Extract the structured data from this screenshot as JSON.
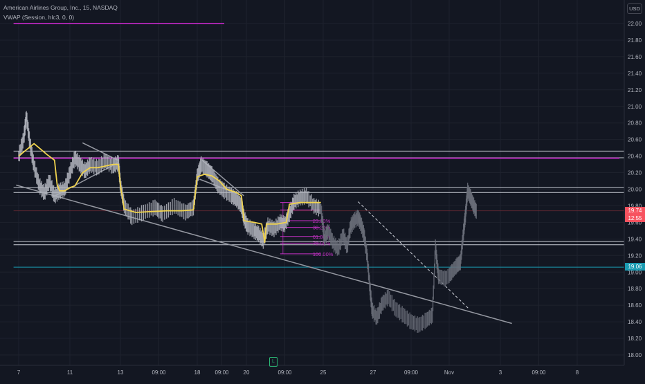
{
  "header": {
    "symbol_line": "American Airlines Group, Inc., 15, NASDAQ",
    "indicator_line": "VWAP (Session, hlc3, 0, 0)"
  },
  "currency": "USD",
  "colors": {
    "background": "#131722",
    "grid": "#1e222d",
    "price_candles": "#b2b5be",
    "projection": "#6b6f7a",
    "vwap": "#f0d34e",
    "magenta_levels": "#d52ad8",
    "white_levels": "#e0e3eb",
    "fib": "#c832c8",
    "trendline": "#9598a1",
    "cyan_level": "#1a9bb2",
    "last_price_tag": "#f7525f",
    "cyan_tag": "#1a9bb2"
  },
  "chart_data": {
    "type": "line",
    "ylim": [
      17.9,
      22.1
    ],
    "y_ticks": [
      "22.00",
      "21.80",
      "21.60",
      "21.40",
      "21.20",
      "21.00",
      "20.80",
      "20.60",
      "20.40",
      "20.20",
      "20.00",
      "19.80",
      "19.60",
      "19.40",
      "19.20",
      "19.00",
      "18.80",
      "18.60",
      "18.40",
      "18.20",
      "18.00"
    ],
    "x_ticks": [
      "7",
      "11",
      "13",
      "09:00",
      "18",
      "09:00",
      "20",
      "09:00",
      "25",
      "27",
      "09:00",
      "Nov",
      "3",
      "09:00",
      "8"
    ],
    "x_tick_pos": [
      0,
      1,
      2,
      2.5,
      3,
      3.5,
      4,
      4.5,
      5,
      6,
      6.5,
      7,
      8,
      8.5,
      9
    ],
    "price_path": [
      [
        0.0,
        20.4
      ],
      [
        0.1,
        20.62
      ],
      [
        0.15,
        20.88
      ],
      [
        0.22,
        20.55
      ],
      [
        0.3,
        20.28
      ],
      [
        0.4,
        20.05
      ],
      [
        0.5,
        19.95
      ],
      [
        0.6,
        20.1
      ],
      [
        0.7,
        19.92
      ],
      [
        0.8,
        19.98
      ],
      [
        0.9,
        20.0
      ],
      [
        1.0,
        20.2
      ],
      [
        1.1,
        20.38
      ],
      [
        1.2,
        20.3
      ],
      [
        1.3,
        20.22
      ],
      [
        1.4,
        20.3
      ],
      [
        1.55,
        20.26
      ],
      [
        1.7,
        20.34
      ],
      [
        1.85,
        20.28
      ],
      [
        1.96,
        20.32
      ],
      [
        2.0,
        20.05
      ],
      [
        2.05,
        19.8
      ],
      [
        2.15,
        19.66
      ],
      [
        2.3,
        19.72
      ],
      [
        2.45,
        19.78
      ],
      [
        2.55,
        19.7
      ],
      [
        2.7,
        19.8
      ],
      [
        2.85,
        19.72
      ],
      [
        2.95,
        19.78
      ],
      [
        3.0,
        20.15
      ],
      [
        3.08,
        20.3
      ],
      [
        3.2,
        20.24
      ],
      [
        3.3,
        20.18
      ],
      [
        3.42,
        20.05
      ],
      [
        3.55,
        19.98
      ],
      [
        3.7,
        19.92
      ],
      [
        3.8,
        19.88
      ],
      [
        3.9,
        19.8
      ],
      [
        3.95,
        19.66
      ],
      [
        4.02,
        19.55
      ],
      [
        4.1,
        19.5
      ],
      [
        4.16,
        19.46
      ],
      [
        4.22,
        19.38
      ],
      [
        4.28,
        19.56
      ],
      [
        4.36,
        19.52
      ],
      [
        4.44,
        19.6
      ],
      [
        4.5,
        19.58
      ],
      [
        4.56,
        19.7
      ],
      [
        4.62,
        19.85
      ],
      [
        4.7,
        19.9
      ],
      [
        4.78,
        19.92
      ],
      [
        4.88,
        19.8
      ],
      [
        4.97,
        19.76
      ]
    ],
    "projection_path": [
      [
        4.97,
        19.76
      ],
      [
        5.02,
        19.4
      ],
      [
        5.1,
        19.5
      ],
      [
        5.2,
        19.35
      ],
      [
        5.3,
        19.28
      ],
      [
        5.4,
        19.45
      ],
      [
        5.48,
        19.3
      ],
      [
        5.55,
        19.55
      ],
      [
        5.62,
        19.62
      ],
      [
        5.7,
        19.66
      ],
      [
        5.76,
        19.58
      ],
      [
        5.82,
        19.45
      ],
      [
        5.88,
        19.2
      ],
      [
        5.94,
        18.8
      ],
      [
        5.98,
        18.55
      ],
      [
        6.05,
        18.45
      ],
      [
        6.12,
        18.62
      ],
      [
        6.2,
        18.7
      ],
      [
        6.3,
        18.55
      ],
      [
        6.4,
        18.48
      ],
      [
        6.5,
        18.4
      ],
      [
        6.6,
        18.36
      ],
      [
        6.7,
        18.42
      ],
      [
        6.78,
        18.48
      ],
      [
        6.82,
        19.3
      ],
      [
        6.86,
        18.95
      ],
      [
        6.95,
        18.92
      ],
      [
        7.05,
        19.0
      ],
      [
        7.15,
        19.08
      ],
      [
        7.22,
        19.12
      ],
      [
        7.28,
        19.48
      ],
      [
        7.32,
        19.7
      ],
      [
        7.36,
        19.98
      ],
      [
        7.42,
        19.9
      ],
      [
        7.48,
        19.8
      ],
      [
        7.54,
        19.72
      ]
    ],
    "vwap_path": [
      [
        0.0,
        20.4
      ],
      [
        0.3,
        20.55
      ],
      [
        0.55,
        20.42
      ],
      [
        0.7,
        20.35
      ],
      [
        0.75,
        20.06
      ],
      [
        0.8,
        19.98
      ],
      [
        0.9,
        19.98
      ],
      [
        1.0,
        20.02
      ],
      [
        1.1,
        20.04
      ],
      [
        1.25,
        20.2
      ],
      [
        1.4,
        20.26
      ],
      [
        1.55,
        20.26
      ],
      [
        1.7,
        20.28
      ],
      [
        1.85,
        20.3
      ],
      [
        1.96,
        20.3
      ],
      [
        2.0,
        20.05
      ],
      [
        2.05,
        19.76
      ],
      [
        2.2,
        19.72
      ],
      [
        2.4,
        19.73
      ],
      [
        2.6,
        19.74
      ],
      [
        2.8,
        19.74
      ],
      [
        2.95,
        19.75
      ],
      [
        3.0,
        20.15
      ],
      [
        3.15,
        20.18
      ],
      [
        3.3,
        20.16
      ],
      [
        3.45,
        20.1
      ],
      [
        3.6,
        20.0
      ],
      [
        3.8,
        19.96
      ],
      [
        3.9,
        19.92
      ],
      [
        3.95,
        19.62
      ],
      [
        4.1,
        19.6
      ],
      [
        4.2,
        19.58
      ],
      [
        4.24,
        19.36
      ],
      [
        4.26,
        19.58
      ],
      [
        4.4,
        19.58
      ],
      [
        4.52,
        19.6
      ],
      [
        4.56,
        19.82
      ],
      [
        4.7,
        19.84
      ],
      [
        4.97,
        19.84
      ]
    ],
    "trendlines": [
      {
        "from": [
          -0.05,
          20.05
        ],
        "to": [
          8.15,
          18.38
        ]
      },
      {
        "from": [
          0.65,
          19.9
        ],
        "to": [
          1.95,
          20.32
        ]
      },
      {
        "from": [
          1.25,
          20.56
        ],
        "to": [
          1.95,
          20.35
        ]
      },
      {
        "from": [
          3.05,
          20.12
        ],
        "to": [
          3.8,
          19.95
        ]
      },
      {
        "from": [
          3.1,
          20.35
        ],
        "to": [
          3.95,
          19.92
        ]
      }
    ],
    "dashed_projection": {
      "from": [
        5.7,
        19.85
      ],
      "to": [
        7.38,
        18.56
      ]
    },
    "horizontal_levels": [
      {
        "y": 20.46,
        "x_from": -0.1,
        "x_to": 11.5,
        "style": "white"
      },
      {
        "y": 20.38,
        "x_from": -0.1,
        "x_to": 11.5,
        "style": "white"
      },
      {
        "y": 20.375,
        "x_from": -0.1,
        "x_to": 9.55,
        "style": "magenta"
      },
      {
        "y": 20.02,
        "x_from": -0.1,
        "x_to": 11.5,
        "style": "white"
      },
      {
        "y": 19.96,
        "x_from": -0.1,
        "x_to": 11.5,
        "style": "white"
      },
      {
        "y": 19.74,
        "x_from": -0.1,
        "x_to": 11.5,
        "style": "faint-red"
      },
      {
        "y": 19.37,
        "x_from": -0.1,
        "x_to": 11.5,
        "style": "white"
      },
      {
        "y": 19.33,
        "x_from": -0.1,
        "x_to": 11.5,
        "style": "white"
      },
      {
        "y": 19.06,
        "x_from": -0.1,
        "x_to": 11.5,
        "style": "cyan"
      },
      {
        "y": 22.0,
        "x_from": -0.1,
        "x_to": 3.55,
        "style": "magenta"
      }
    ],
    "fib": {
      "x_from": 4.44,
      "x_to": 4.96,
      "levels": [
        {
          "y": 19.84,
          "label": ""
        },
        {
          "y": 19.75,
          "label": ""
        },
        {
          "y": 19.62,
          "label": "23.60%"
        },
        {
          "y": 19.54,
          "label": "38.20%"
        },
        {
          "y": 19.43,
          "label": "61.80%"
        },
        {
          "y": 19.35,
          "label": "78.60%"
        },
        {
          "y": 19.22,
          "label": "100.00%"
        }
      ]
    },
    "price_tags": [
      {
        "value": "19.74",
        "sub": "12:55",
        "y": 19.74,
        "color": "#f7525f"
      },
      {
        "value": "19.06",
        "sub": "",
        "y": 19.06,
        "color": "#1a9bb2"
      }
    ]
  }
}
